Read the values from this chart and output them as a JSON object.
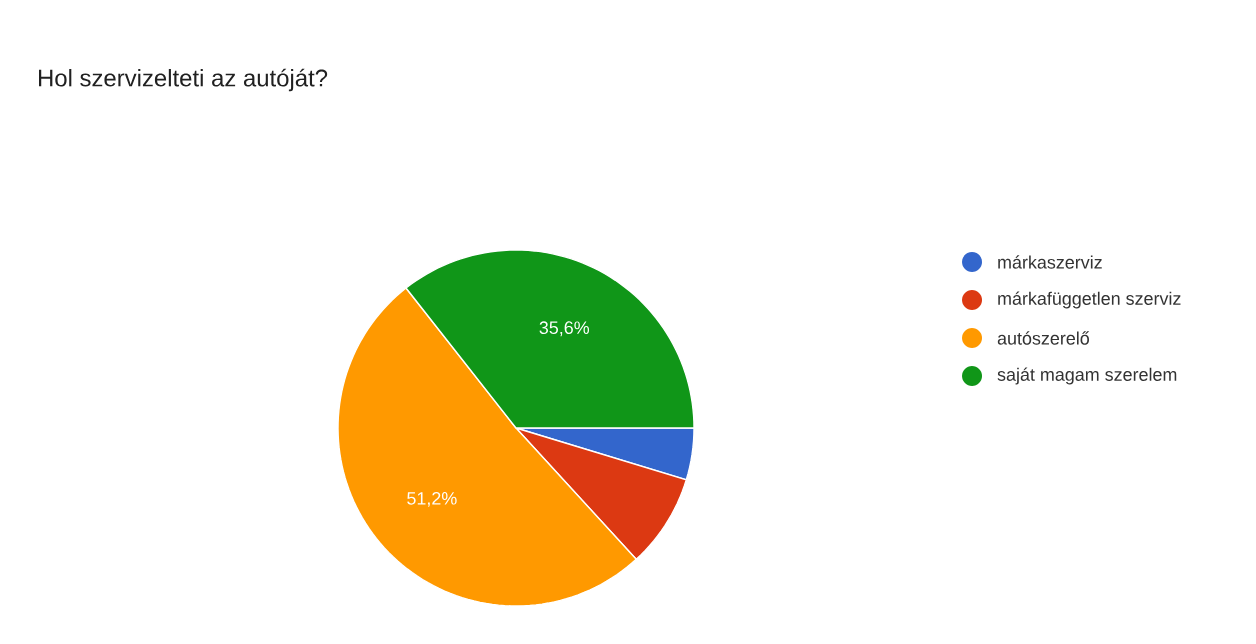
{
  "chart_data": {
    "type": "pie",
    "title": "Hol szervizelteti az autóját?",
    "categories": [
      "márkaszerviz",
      "márkafüggetlen szerviz",
      "autószerelő",
      "saját magam szerelem"
    ],
    "values": [
      4.7,
      8.5,
      51.2,
      35.6
    ],
    "colors": [
      "#3366cc",
      "#dc3912",
      "#ff9900",
      "#109618"
    ],
    "value_labels": [
      null,
      null,
      "51,2%",
      "35,6%"
    ],
    "legend": "right"
  }
}
